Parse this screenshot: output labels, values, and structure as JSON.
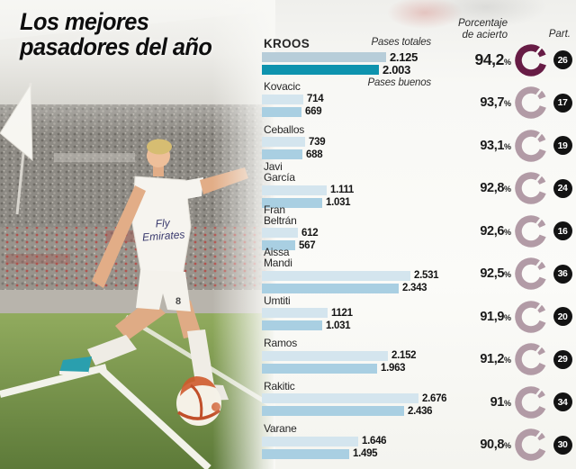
{
  "title": {
    "line1": "Los mejores",
    "line2": "pasadores del año"
  },
  "columns": {
    "accuracy_line1": "Porcentaje",
    "accuracy_line2": "de acierto",
    "part": "Part."
  },
  "legend": {
    "totales": "Pases totales",
    "buenos": "Pases buenos"
  },
  "units": {
    "percent": "%"
  },
  "photo": {
    "jersey_line1": "Fly",
    "jersey_line2": "Emirates",
    "shorts_number": "8"
  },
  "colors": {
    "bar_total": "#d4e5ee",
    "bar_good": "#a9cfe2",
    "bar_total_highlight": "#b7cdd9",
    "bar_good_highlight": "#0e93ae",
    "gauge": "#b29ba6",
    "gauge_highlight": "#671c45",
    "part_badge": "#131313"
  },
  "chart_data": {
    "type": "bar",
    "orientation": "horizontal",
    "series_labels": [
      "Pases totales",
      "Pases buenos"
    ],
    "value_note": "values shown with thousands dot as printed",
    "players": [
      {
        "name": "KROOS",
        "totales": "2.125",
        "buenos": "2.003",
        "pct": "94,2",
        "part": "26",
        "highlight": true
      },
      {
        "name": "Kovacic",
        "totales": "714",
        "buenos": "669",
        "pct": "93,7",
        "part": "17",
        "highlight": false
      },
      {
        "name": "Ceballos",
        "totales": "739",
        "buenos": "688",
        "pct": "93,1",
        "part": "19",
        "highlight": false
      },
      {
        "name": "Javi\nGarcía",
        "totales": "1.111",
        "buenos": "1.031",
        "pct": "92,8",
        "part": "24",
        "highlight": false
      },
      {
        "name": "Fran\nBeltrán",
        "totales": "612",
        "buenos": "567",
        "pct": "92,6",
        "part": "16",
        "highlight": false
      },
      {
        "name": "Aissa\nMandi",
        "totales": "2.531",
        "buenos": "2.343",
        "pct": "92,5",
        "part": "36",
        "highlight": false
      },
      {
        "name": "Umtiti",
        "totales": "1121",
        "buenos": "1.031",
        "pct": "91,9",
        "part": "20",
        "highlight": false
      },
      {
        "name": "Ramos",
        "totales": "2.152",
        "buenos": "1.963",
        "pct": "91,2",
        "part": "29",
        "highlight": false
      },
      {
        "name": "Rakitic",
        "totales": "2.676",
        "buenos": "2.436",
        "pct": "91",
        "part": "34",
        "highlight": false
      },
      {
        "name": "Varane",
        "totales": "1.646",
        "buenos": "1.495",
        "pct": "90,8",
        "part": "30",
        "highlight": false
      }
    ]
  }
}
